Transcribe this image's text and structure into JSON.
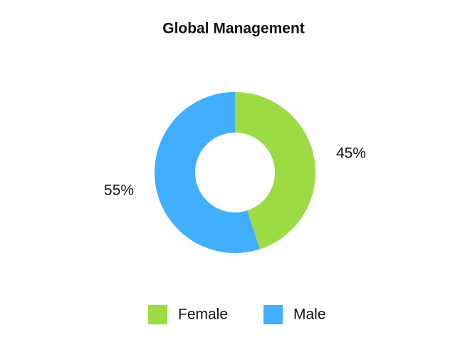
{
  "chart_data": {
    "type": "donut",
    "title": "Global Management",
    "categories": [
      "Female",
      "Male"
    ],
    "values": [
      45,
      55
    ],
    "value_labels": [
      "45%",
      "55%"
    ],
    "colors": [
      "#9ddb45",
      "#42aefe"
    ]
  }
}
